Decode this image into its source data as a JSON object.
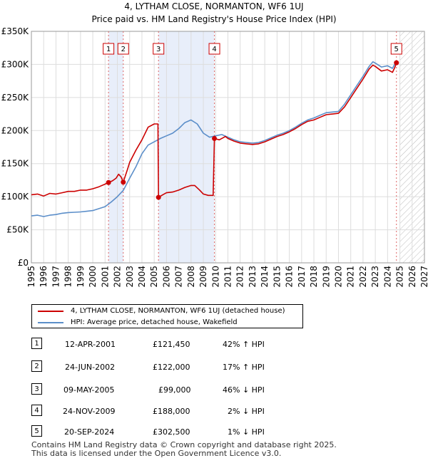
{
  "chart_data": {
    "type": "line",
    "title": "4, LYTHAM CLOSE, NORMANTON, WF6 1UJ",
    "subtitle": "Price paid vs. HM Land Registry's House Price Index (HPI)",
    "ylabel": "",
    "xlabel": "",
    "xlim": [
      1995,
      2027
    ],
    "ylim": [
      0,
      350000
    ],
    "y_ticks": [
      0,
      50000,
      100000,
      150000,
      200000,
      250000,
      300000,
      350000
    ],
    "y_tick_labels": [
      "£0",
      "£50K",
      "£100K",
      "£150K",
      "£200K",
      "£250K",
      "£300K",
      "£350K"
    ],
    "x_ticks": [
      1995,
      1996,
      1997,
      1998,
      1999,
      2000,
      2001,
      2002,
      2003,
      2004,
      2005,
      2006,
      2007,
      2008,
      2009,
      2010,
      2011,
      2012,
      2013,
      2014,
      2015,
      2016,
      2017,
      2018,
      2019,
      2020,
      2021,
      2022,
      2023,
      2024,
      2025,
      2026,
      2027
    ],
    "grid": true,
    "future_hatch_from": 2025.0,
    "shaded_periods": [
      [
        2001.28,
        2002.48
      ],
      [
        2005.35,
        2009.9
      ]
    ],
    "series": [
      {
        "name": "4, LYTHAM CLOSE, NORMANTON, WF6 1UJ (detached house)",
        "color": "#cc0000",
        "points": [
          [
            1995.0,
            103000
          ],
          [
            1995.5,
            104000
          ],
          [
            1996.0,
            101000
          ],
          [
            1996.5,
            105000
          ],
          [
            1997.0,
            104000
          ],
          [
            1997.5,
            106000
          ],
          [
            1998.0,
            108000
          ],
          [
            1998.5,
            108000
          ],
          [
            1999.0,
            110000
          ],
          [
            1999.5,
            110000
          ],
          [
            2000.0,
            112000
          ],
          [
            2000.5,
            115000
          ],
          [
            2001.0,
            119000
          ],
          [
            2001.28,
            121450
          ],
          [
            2001.6,
            124000
          ],
          [
            2001.9,
            128000
          ],
          [
            2002.1,
            134000
          ],
          [
            2002.3,
            130000
          ],
          [
            2002.48,
            122000
          ],
          [
            2002.8,
            140000
          ],
          [
            2003.0,
            152000
          ],
          [
            2003.5,
            170000
          ],
          [
            2004.0,
            186000
          ],
          [
            2004.5,
            205000
          ],
          [
            2005.0,
            210000
          ],
          [
            2005.3,
            210000
          ],
          [
            2005.35,
            99000
          ],
          [
            2005.7,
            103000
          ],
          [
            2006.0,
            106000
          ],
          [
            2006.5,
            107000
          ],
          [
            2007.0,
            110000
          ],
          [
            2007.5,
            114000
          ],
          [
            2008.0,
            117000
          ],
          [
            2008.3,
            117000
          ],
          [
            2008.7,
            110000
          ],
          [
            2009.0,
            104000
          ],
          [
            2009.4,
            102000
          ],
          [
            2009.8,
            102000
          ],
          [
            2009.9,
            188000
          ],
          [
            2010.3,
            186000
          ],
          [
            2010.8,
            191000
          ],
          [
            2011.0,
            188000
          ],
          [
            2011.5,
            184000
          ],
          [
            2012.0,
            181000
          ],
          [
            2012.5,
            180000
          ],
          [
            2013.0,
            179000
          ],
          [
            2013.5,
            180000
          ],
          [
            2014.0,
            183000
          ],
          [
            2014.5,
            187000
          ],
          [
            2015.0,
            191000
          ],
          [
            2015.5,
            194000
          ],
          [
            2016.0,
            198000
          ],
          [
            2016.5,
            203000
          ],
          [
            2017.0,
            209000
          ],
          [
            2017.5,
            214000
          ],
          [
            2018.0,
            216000
          ],
          [
            2018.5,
            220000
          ],
          [
            2019.0,
            224000
          ],
          [
            2019.5,
            225000
          ],
          [
            2020.0,
            226000
          ],
          [
            2020.5,
            236000
          ],
          [
            2021.0,
            250000
          ],
          [
            2021.5,
            264000
          ],
          [
            2022.0,
            278000
          ],
          [
            2022.5,
            293000
          ],
          [
            2022.8,
            299000
          ],
          [
            2023.0,
            297000
          ],
          [
            2023.5,
            290000
          ],
          [
            2024.0,
            292000
          ],
          [
            2024.4,
            288000
          ],
          [
            2024.6,
            296000
          ],
          [
            2024.72,
            302500
          ]
        ]
      },
      {
        "name": "HPI: Average price, detached house, Wakefield",
        "color": "#5b8ec9",
        "points": [
          [
            1995.0,
            71000
          ],
          [
            1995.5,
            72000
          ],
          [
            1996.0,
            70000
          ],
          [
            1996.5,
            72000
          ],
          [
            1997.0,
            73000
          ],
          [
            1997.5,
            75000
          ],
          [
            1998.0,
            76000
          ],
          [
            1998.5,
            76500
          ],
          [
            1999.0,
            77000
          ],
          [
            1999.5,
            78000
          ],
          [
            2000.0,
            79000
          ],
          [
            2000.5,
            82000
          ],
          [
            2001.0,
            85000
          ],
          [
            2001.5,
            92000
          ],
          [
            2002.0,
            100000
          ],
          [
            2002.5,
            110000
          ],
          [
            2003.0,
            128000
          ],
          [
            2003.5,
            145000
          ],
          [
            2004.0,
            165000
          ],
          [
            2004.5,
            178000
          ],
          [
            2005.0,
            183000
          ],
          [
            2005.5,
            188000
          ],
          [
            2006.0,
            192000
          ],
          [
            2006.5,
            196000
          ],
          [
            2007.0,
            203000
          ],
          [
            2007.5,
            212000
          ],
          [
            2008.0,
            216000
          ],
          [
            2008.5,
            210000
          ],
          [
            2009.0,
            196000
          ],
          [
            2009.5,
            190000
          ],
          [
            2010.0,
            192000
          ],
          [
            2010.5,
            194000
          ],
          [
            2011.0,
            190000
          ],
          [
            2011.5,
            186000
          ],
          [
            2012.0,
            183000
          ],
          [
            2012.5,
            182000
          ],
          [
            2013.0,
            181000
          ],
          [
            2013.5,
            182000
          ],
          [
            2014.0,
            185000
          ],
          [
            2014.5,
            189000
          ],
          [
            2015.0,
            193000
          ],
          [
            2015.5,
            196000
          ],
          [
            2016.0,
            200000
          ],
          [
            2016.5,
            205000
          ],
          [
            2017.0,
            211000
          ],
          [
            2017.5,
            216000
          ],
          [
            2018.0,
            219000
          ],
          [
            2018.5,
            223000
          ],
          [
            2019.0,
            227000
          ],
          [
            2019.5,
            228000
          ],
          [
            2020.0,
            229000
          ],
          [
            2020.5,
            240000
          ],
          [
            2021.0,
            254000
          ],
          [
            2021.5,
            268000
          ],
          [
            2022.0,
            282000
          ],
          [
            2022.5,
            297000
          ],
          [
            2022.8,
            304000
          ],
          [
            2023.0,
            302000
          ],
          [
            2023.5,
            296000
          ],
          [
            2024.0,
            298000
          ],
          [
            2024.4,
            294000
          ],
          [
            2024.72,
            305000
          ]
        ]
      }
    ],
    "markers": [
      {
        "num": "1",
        "x": 2001.28,
        "y": 121450
      },
      {
        "num": "2",
        "x": 2002.48,
        "y": 122000
      },
      {
        "num": "3",
        "x": 2005.35,
        "y": 99000
      },
      {
        "num": "4",
        "x": 2009.9,
        "y": 188000
      },
      {
        "num": "5",
        "x": 2024.72,
        "y": 302500
      }
    ]
  },
  "legend": {
    "property_label": "4, LYTHAM CLOSE, NORMANTON, WF6 1UJ (detached house)",
    "hpi_label": "HPI: Average price, detached house, Wakefield"
  },
  "transactions": [
    {
      "num": "1",
      "date": "12-APR-2001",
      "price": "£121,450",
      "hpi": "42% ↑ HPI"
    },
    {
      "num": "2",
      "date": "24-JUN-2002",
      "price": "£122,000",
      "hpi": "17% ↑ HPI"
    },
    {
      "num": "3",
      "date": "09-MAY-2005",
      "price": "£99,000",
      "hpi": "46% ↓ HPI"
    },
    {
      "num": "4",
      "date": "24-NOV-2009",
      "price": "£188,000",
      "hpi": "2% ↓ HPI"
    },
    {
      "num": "5",
      "date": "20-SEP-2024",
      "price": "£302,500",
      "hpi": "1% ↓ HPI"
    }
  ],
  "footer": {
    "line1": "Contains HM Land Registry data © Crown copyright and database right 2025.",
    "line2": "This data is licensed under the Open Government Licence v3.0."
  },
  "colors": {
    "property": "#cc0000",
    "hpi": "#5b8ec9",
    "shade": "#e8eefa"
  }
}
